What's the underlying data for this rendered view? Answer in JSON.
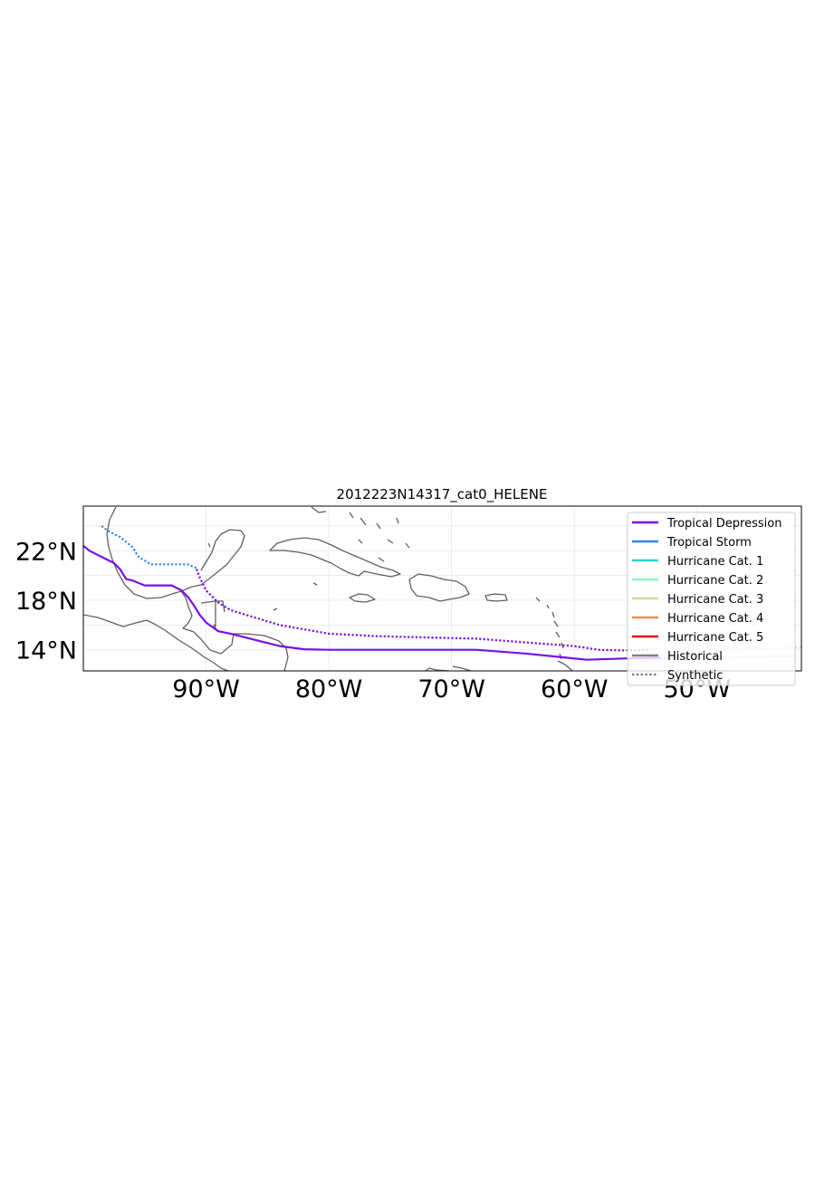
{
  "chart_data": {
    "type": "map",
    "title": "2012223N14317_cat0_HELENE",
    "lon_range": [
      -100,
      -41.5
    ],
    "lat_range": [
      12.3,
      25.6
    ],
    "x_ticks": [
      {
        "value": -90,
        "label": "90°W"
      },
      {
        "value": -80,
        "label": "80°W"
      },
      {
        "value": -70,
        "label": "70°W"
      },
      {
        "value": -60,
        "label": "60°W"
      },
      {
        "value": -50,
        "label": "50°W"
      }
    ],
    "y_ticks": [
      {
        "value": 14,
        "label": "14°N"
      },
      {
        "value": 18,
        "label": "18°N"
      },
      {
        "value": 22,
        "label": "22°N"
      }
    ],
    "grid": true,
    "legend_position": "top-right",
    "legend": [
      {
        "label": "Tropical Depression",
        "color": "#7a0ee8",
        "style": "solid"
      },
      {
        "label": "Tropical Storm",
        "color": "#2f86f0",
        "style": "solid"
      },
      {
        "label": "Hurricane Cat. 1",
        "color": "#2ad6d4",
        "style": "solid"
      },
      {
        "label": "Hurricane Cat. 2",
        "color": "#8af5bb",
        "style": "solid"
      },
      {
        "label": "Hurricane Cat. 3",
        "color": "#d6dc8c",
        "style": "solid"
      },
      {
        "label": "Hurricane Cat. 4",
        "color": "#f48a52",
        "style": "solid"
      },
      {
        "label": "Hurricane Cat. 5",
        "color": "#f01010",
        "style": "solid"
      },
      {
        "label": "Historical",
        "color": "#808080",
        "style": "solid"
      },
      {
        "label": "Synthetic",
        "color": "#808080",
        "style": "dotted"
      }
    ],
    "tracks": [
      {
        "kind": "historical",
        "segments": [
          {
            "category": "Tropical Depression",
            "color": "#e6d2f8",
            "points": [
              [
                -42,
                13.5
              ],
              [
                -46,
                13.4
              ],
              [
                -50,
                13.3
              ],
              [
                -53,
                13.35
              ]
            ]
          },
          {
            "category": "Tropical Depression",
            "color": "#7a0ee8",
            "points": [
              [
                -53,
                13.35
              ],
              [
                -56,
                13.3
              ],
              [
                -59,
                13.2
              ],
              [
                -61,
                13.4
              ],
              [
                -64,
                13.7
              ],
              [
                -68,
                14.0
              ],
              [
                -72,
                14.0
              ],
              [
                -76,
                14.0
              ],
              [
                -80,
                14.0
              ],
              [
                -82,
                14.05
              ],
              [
                -84,
                14.3
              ],
              [
                -86,
                14.8
              ],
              [
                -88,
                15.3
              ],
              [
                -89,
                15.5
              ],
              [
                -90,
                16.2
              ],
              [
                -90.5,
                16.8
              ],
              [
                -91,
                17.6
              ],
              [
                -91.5,
                18.3
              ],
              [
                -92,
                18.8
              ],
              [
                -92.8,
                19.2
              ],
              [
                -94,
                19.2
              ],
              [
                -95,
                19.2
              ],
              [
                -96,
                19.6
              ],
              [
                -96.5,
                19.7
              ],
              [
                -97,
                20.5
              ],
              [
                -97.5,
                21.0
              ],
              [
                -98.5,
                21.5
              ],
              [
                -99.5,
                22.0
              ],
              [
                -100,
                22.4
              ]
            ]
          }
        ]
      },
      {
        "kind": "synthetic",
        "segments": [
          {
            "category": "Tropical Depression",
            "color": "#e6d2f8",
            "points": [
              [
                -41.5,
                14.2
              ],
              [
                -46,
                14.1
              ],
              [
                -50,
                14.05
              ],
              [
                -54,
                14.0
              ]
            ]
          },
          {
            "category": "Tropical Depression",
            "color": "#7a0ee8",
            "points": [
              [
                -54,
                14.0
              ],
              [
                -56,
                13.95
              ],
              [
                -58,
                14.0
              ],
              [
                -60,
                14.3
              ],
              [
                -64,
                14.6
              ],
              [
                -68,
                14.9
              ],
              [
                -72,
                15.0
              ],
              [
                -76,
                15.1
              ],
              [
                -80,
                15.3
              ],
              [
                -84,
                16.0
              ],
              [
                -86,
                16.6
              ],
              [
                -88,
                17.2
              ],
              [
                -89,
                17.8
              ],
              [
                -90,
                18.8
              ],
              [
                -90.5,
                19.8
              ],
              [
                -90.8,
                20.6
              ]
            ]
          },
          {
            "category": "Tropical Storm",
            "color": "#2f86f0",
            "points": [
              [
                -90.8,
                20.6
              ],
              [
                -91.5,
                20.9
              ],
              [
                -93,
                20.9
              ],
              [
                -94.5,
                20.9
              ],
              [
                -95.5,
                21.5
              ],
              [
                -96,
                22.3
              ],
              [
                -97,
                23.1
              ],
              [
                -98,
                23.6
              ],
              [
                -98.5,
                24.0
              ]
            ]
          }
        ]
      }
    ]
  }
}
